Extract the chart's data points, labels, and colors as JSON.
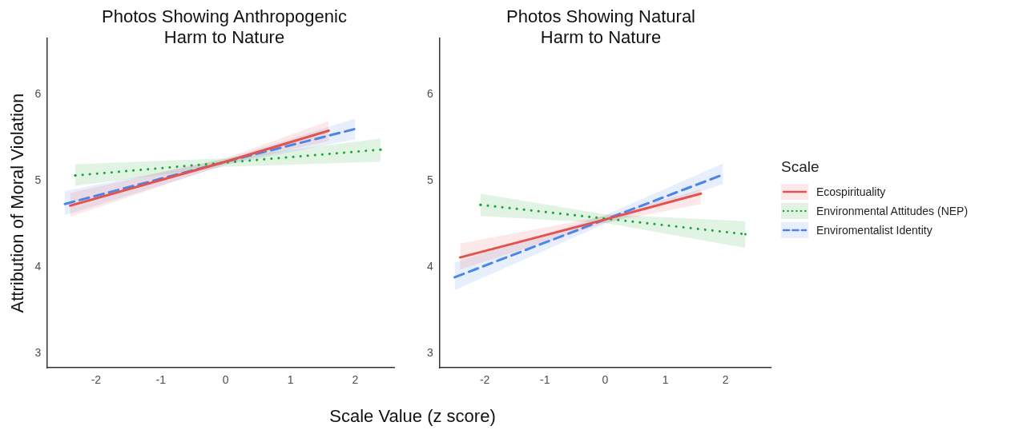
{
  "chart_data": [
    {
      "type": "line",
      "title": "Photos Showing Anthropogenic Harm to Nature",
      "ylabel": "Attribution of Moral Violation",
      "xlabel": "Scale Value (z score)",
      "marker": "none",
      "xlim": [
        -2.75,
        2.6
      ],
      "ylim": [
        2.83,
        6.65
      ],
      "xticks": [
        -2,
        -1,
        0,
        1,
        2
      ],
      "yticks": [
        3,
        4,
        5,
        6
      ],
      "series": [
        {
          "color": "#e5514c",
          "line_style": "solid",
          "x": [
            -2.4,
            0,
            1.59
          ],
          "values": [
            4.71,
            5.22,
            5.58
          ],
          "lower": [
            4.58,
            5.19,
            5.46
          ],
          "upper": [
            4.86,
            5.26,
            5.69
          ]
        },
        {
          "color": "#1aa832",
          "line_style": "dotted",
          "x": [
            -2.32,
            0,
            2.39
          ],
          "values": [
            5.06,
            5.21,
            5.36
          ],
          "lower": [
            4.94,
            5.16,
            5.22
          ],
          "upper": [
            5.19,
            5.26,
            5.49
          ]
        },
        {
          "color": "#4a86e8",
          "line_style": "dashed",
          "x": [
            -2.48,
            0,
            2.0
          ],
          "values": [
            4.73,
            5.22,
            5.6
          ],
          "lower": [
            4.6,
            5.18,
            5.48
          ],
          "upper": [
            4.88,
            5.25,
            5.72
          ]
        }
      ]
    },
    {
      "type": "line",
      "title": "Photos Showing Natural Harm to Nature",
      "legend_title": "Scale",
      "legend": "right",
      "marker": "none",
      "xlim": [
        -2.75,
        2.75
      ],
      "ylim": [
        2.83,
        6.65
      ],
      "xticks": [
        -2,
        -1,
        0,
        1,
        2
      ],
      "yticks": [
        3,
        4,
        5,
        6
      ],
      "series": [
        {
          "name": "Ecospirituality",
          "color": "#e5514c",
          "line_style": "solid",
          "x": [
            -2.41,
            0,
            1.59
          ],
          "values": [
            4.11,
            4.55,
            4.85
          ],
          "lower": [
            3.97,
            4.51,
            4.73
          ],
          "upper": [
            4.27,
            4.59,
            4.9
          ]
        },
        {
          "name": "Environmental Attitudes (NEP)",
          "color": "#1aa832",
          "line_style": "dotted",
          "x": [
            -2.07,
            0,
            2.33
          ],
          "values": [
            4.72,
            4.56,
            4.38
          ],
          "lower": [
            4.59,
            4.51,
            4.22
          ],
          "upper": [
            4.85,
            4.61,
            4.53
          ]
        },
        {
          "name": "Enviromentalist Identity",
          "color": "#4a86e8",
          "line_style": "dashed",
          "x": [
            -2.5,
            0,
            1.96
          ],
          "values": [
            3.88,
            4.55,
            5.07
          ],
          "lower": [
            3.73,
            4.5,
            4.96
          ],
          "upper": [
            4.05,
            4.6,
            5.2
          ]
        }
      ]
    }
  ]
}
